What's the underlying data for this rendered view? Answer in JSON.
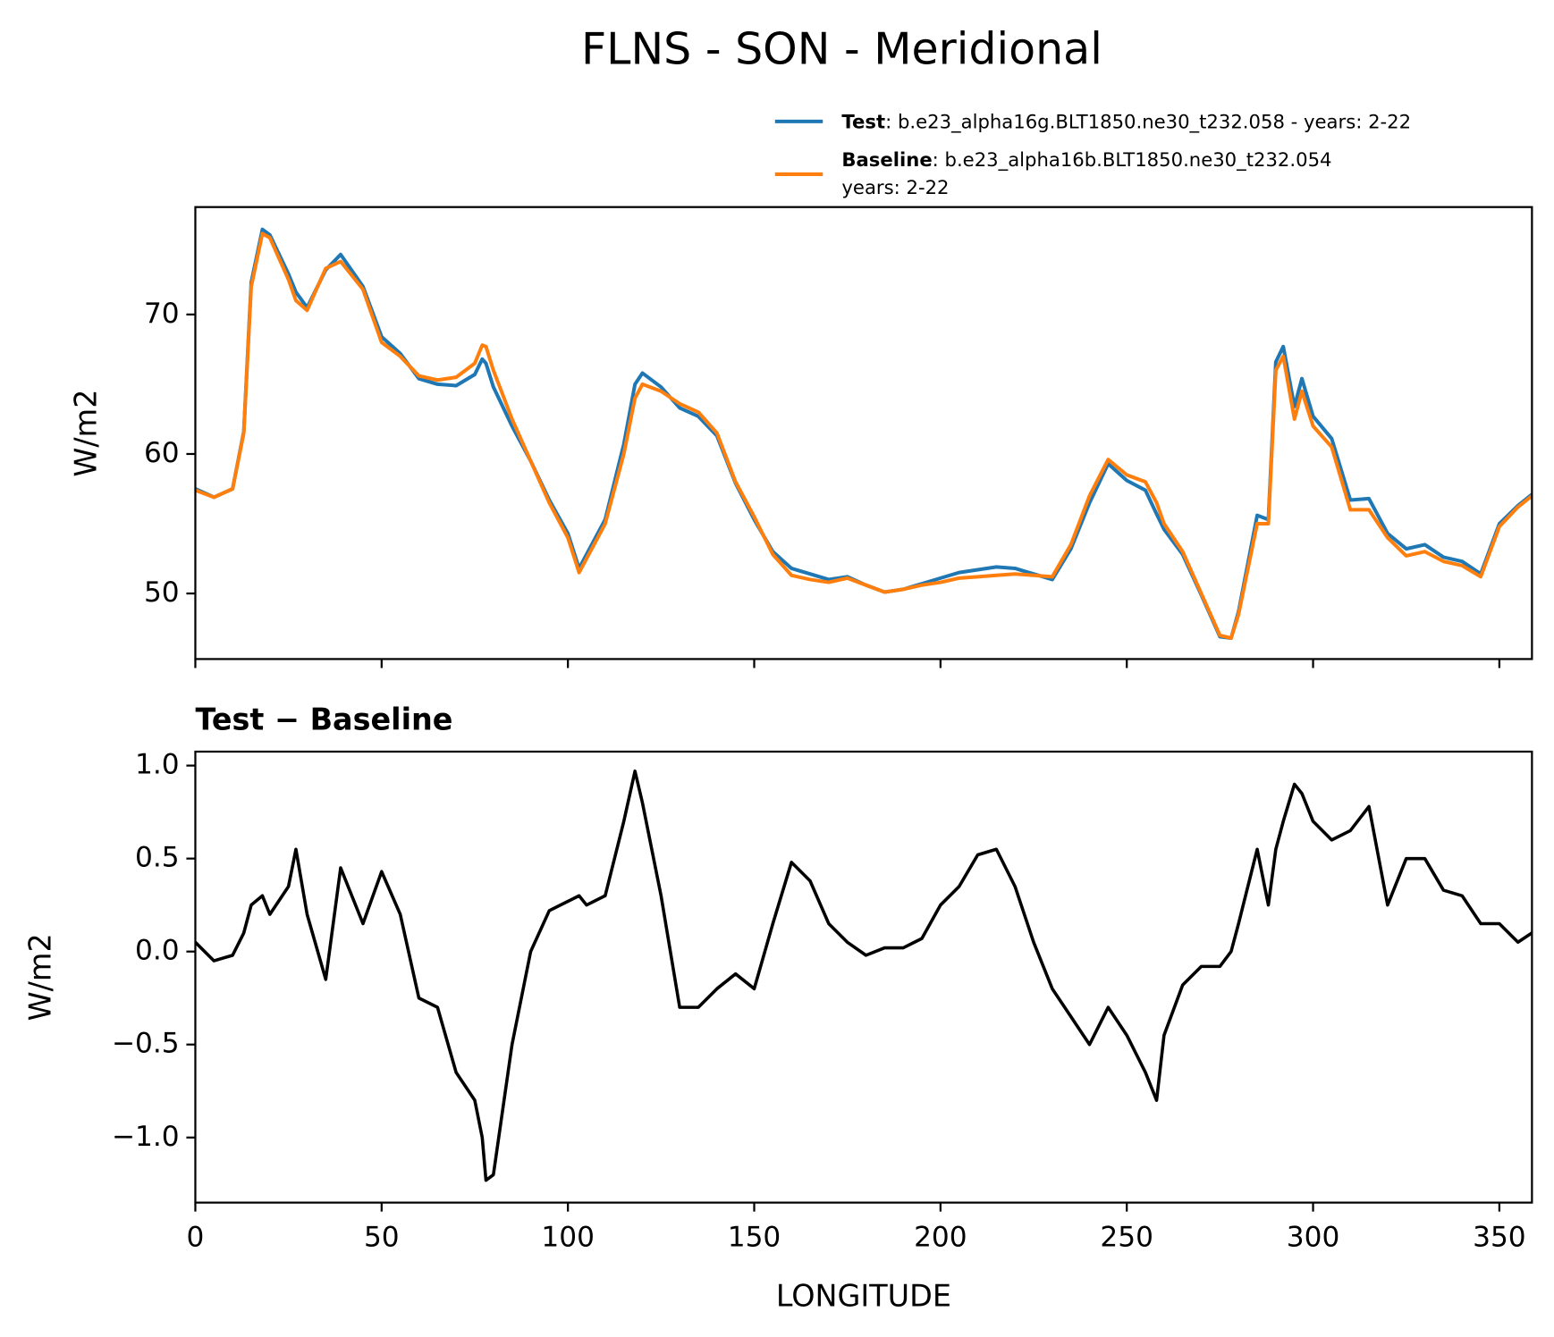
{
  "title": "FLNS - SON - Meridional",
  "chart_data": [
    {
      "type": "line",
      "ylabel": "W/m2",
      "x": [
        0,
        5,
        10,
        13,
        15,
        18,
        20,
        25,
        27,
        30,
        35,
        39,
        45,
        50,
        55,
        60,
        65,
        70,
        75,
        77,
        78,
        80,
        85,
        90,
        95,
        100,
        103,
        105,
        110,
        115,
        118,
        120,
        125,
        130,
        135,
        140,
        145,
        150,
        155,
        160,
        165,
        170,
        175,
        180,
        185,
        190,
        195,
        200,
        205,
        210,
        215,
        220,
        225,
        230,
        235,
        240,
        245,
        250,
        255,
        258,
        260,
        265,
        270,
        275,
        278,
        280,
        285,
        288,
        290,
        292,
        295,
        297,
        300,
        305,
        310,
        315,
        320,
        325,
        330,
        335,
        340,
        345,
        350,
        355,
        358.75
      ],
      "series": [
        {
          "name": "Test",
          "description": ": b.e23_alpha16g.BLT1850.ne30_t232.058 - years: 2-22",
          "color": "#1f77b4",
          "values": [
            57.5,
            56.9,
            57.5,
            61.6,
            72.3,
            76.1,
            75.7,
            72.9,
            71.6,
            70.5,
            73.2,
            74.3,
            72.0,
            68.4,
            67.2,
            65.4,
            65.0,
            64.9,
            65.7,
            66.8,
            66.5,
            64.8,
            62.0,
            59.5,
            56.7,
            54.3,
            51.8,
            52.8,
            55.3,
            60.7,
            65.0,
            65.8,
            64.8,
            63.3,
            62.7,
            61.3,
            57.9,
            55.3,
            53.0,
            51.8,
            51.4,
            51.0,
            51.2,
            50.6,
            50.1,
            50.3,
            50.7,
            51.1,
            51.5,
            51.7,
            51.9,
            51.8,
            51.4,
            51.0,
            53.2,
            56.5,
            59.3,
            58.1,
            57.4,
            55.7,
            54.6,
            52.8,
            49.9,
            46.9,
            46.8,
            48.7,
            55.6,
            55.3,
            66.6,
            67.7,
            63.4,
            65.4,
            62.7,
            61.1,
            56.7,
            56.8,
            54.3,
            53.2,
            53.5,
            52.6,
            52.3,
            51.4,
            55.0,
            56.3,
            57.1
          ]
        },
        {
          "name": "Baseline",
          "description": [
            ": b.e23_alpha16b.BLT1850.ne30_t232.054",
            "years: 2-22"
          ],
          "color": "#ff7f0e",
          "values": [
            57.4,
            56.9,
            57.5,
            61.5,
            72.0,
            75.8,
            75.5,
            72.5,
            71.0,
            70.3,
            73.3,
            73.8,
            71.8,
            68.0,
            67.0,
            65.6,
            65.3,
            65.5,
            66.5,
            67.8,
            67.7,
            66.0,
            62.5,
            59.5,
            56.5,
            54.0,
            51.5,
            52.5,
            55.0,
            60.0,
            64.0,
            65.0,
            64.5,
            63.6,
            63.0,
            61.5,
            58.0,
            55.5,
            52.8,
            51.3,
            51.0,
            50.8,
            51.1,
            50.6,
            50.1,
            50.3,
            50.6,
            50.8,
            51.1,
            51.2,
            51.3,
            51.4,
            51.3,
            51.2,
            53.5,
            57.0,
            59.6,
            58.5,
            58.0,
            56.5,
            55.0,
            53.0,
            50.0,
            47.0,
            46.8,
            48.5,
            55.0,
            55.0,
            66.0,
            67.0,
            62.5,
            64.5,
            62.0,
            60.5,
            56.0,
            56.0,
            54.0,
            52.7,
            53.0,
            52.3,
            52.0,
            51.2,
            54.8,
            56.2,
            57.0
          ]
        }
      ],
      "xlim": [
        0,
        358.75
      ],
      "xticks": [
        0,
        50,
        100,
        150,
        200,
        250,
        300,
        350
      ],
      "show_xtick_labels": false,
      "ylim": [
        45.3,
        77.7
      ],
      "yticks": [
        50,
        60,
        70
      ],
      "legend": "upper right"
    },
    {
      "type": "line",
      "title": "Test − Baseline",
      "xlabel": "LONGITUDE",
      "ylabel": "W/m2",
      "x": [
        0,
        5,
        10,
        13,
        15,
        18,
        20,
        25,
        27,
        30,
        35,
        39,
        45,
        50,
        55,
        60,
        65,
        70,
        75,
        77,
        78,
        80,
        85,
        90,
        95,
        100,
        103,
        105,
        110,
        115,
        118,
        120,
        125,
        130,
        135,
        140,
        145,
        150,
        155,
        160,
        165,
        170,
        175,
        180,
        185,
        190,
        195,
        200,
        205,
        210,
        215,
        220,
        225,
        230,
        235,
        240,
        245,
        250,
        255,
        258,
        260,
        265,
        270,
        275,
        278,
        280,
        285,
        288,
        290,
        292,
        295,
        297,
        300,
        305,
        310,
        315,
        320,
        325,
        330,
        335,
        340,
        345,
        350,
        355,
        358.75
      ],
      "series": [
        {
          "color": "#000000",
          "values": [
            0.05,
            -0.05,
            -0.02,
            0.1,
            0.25,
            0.3,
            0.2,
            0.35,
            0.55,
            0.2,
            -0.15,
            0.45,
            0.15,
            0.43,
            0.2,
            -0.25,
            -0.3,
            -0.65,
            -0.8,
            -1.0,
            -1.23,
            -1.2,
            -0.5,
            0.0,
            0.22,
            0.27,
            0.3,
            0.25,
            0.3,
            0.7,
            0.97,
            0.8,
            0.3,
            -0.3,
            -0.3,
            -0.2,
            -0.12,
            -0.2,
            0.15,
            0.48,
            0.38,
            0.15,
            0.05,
            -0.02,
            0.02,
            0.02,
            0.07,
            0.25,
            0.35,
            0.52,
            0.55,
            0.35,
            0.05,
            -0.2,
            -0.35,
            -0.5,
            -0.3,
            -0.45,
            -0.65,
            -0.8,
            -0.45,
            -0.18,
            -0.08,
            -0.08,
            0.0,
            0.15,
            0.55,
            0.25,
            0.55,
            0.7,
            0.9,
            0.85,
            0.7,
            0.6,
            0.65,
            0.78,
            0.25,
            0.5,
            0.5,
            0.33,
            0.3,
            0.15,
            0.15,
            0.05,
            0.1
          ]
        }
      ],
      "xlim": [
        0,
        358.75
      ],
      "xticks": [
        0,
        50,
        100,
        150,
        200,
        250,
        300,
        350
      ],
      "show_xtick_labels": true,
      "ylim": [
        -1.35,
        1.075
      ],
      "yticks": [
        {
          "value": -1.0,
          "label": "−1.0"
        },
        {
          "value": -0.5,
          "label": "−0.5"
        },
        {
          "value": 0,
          "label": "0.0"
        },
        0.5,
        {
          "value": 1.0,
          "label": "1.0"
        }
      ]
    }
  ]
}
